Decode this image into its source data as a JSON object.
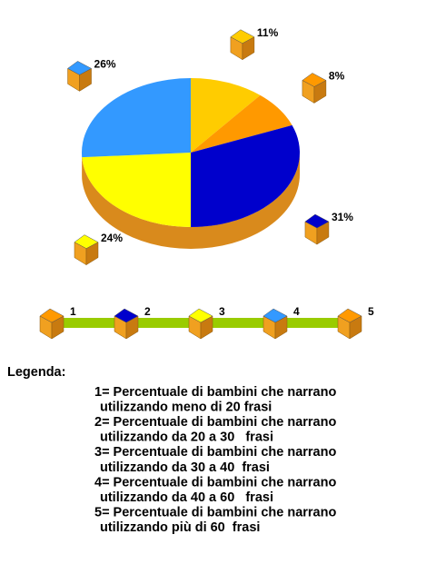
{
  "chart_data": {
    "type": "pie3d",
    "values": [
      11,
      8,
      31,
      24,
      26
    ],
    "value_labels": [
      "11%",
      "8%",
      "31%",
      "24%",
      "26%"
    ],
    "colors": [
      "#ffcc00",
      "#ff9900",
      "#0000cc",
      "#ffff00",
      "#3399ff"
    ],
    "side_color": "#d98a1c",
    "legend_items": [
      {
        "label": "1",
        "color": "#ff9900"
      },
      {
        "label": "2",
        "color": "#0000cc"
      },
      {
        "label": "3",
        "color": "#ffff00"
      },
      {
        "label": "4",
        "color": "#3399ff"
      },
      {
        "label": "5",
        "color": "#ff9900"
      }
    ],
    "legend_bar_color": "#99cc00",
    "legend_title": "Legenda:",
    "legend_lines": [
      "1= Percentuale di bambini che narrano",
      "utilizzando meno di 20 frasi",
      "2= Percentuale di bambini che narrano",
      "utilizzando da 20 a 30   frasi",
      "3= Percentuale di bambini che narrano",
      "utilizzando da 30 a 40  frasi",
      "4= Percentuale di bambini che narrano",
      "utilizzando da 40 a 60   frasi",
      "5= Percentuale di bambini che narrano",
      "utilizzando più di 60  frasi"
    ]
  }
}
